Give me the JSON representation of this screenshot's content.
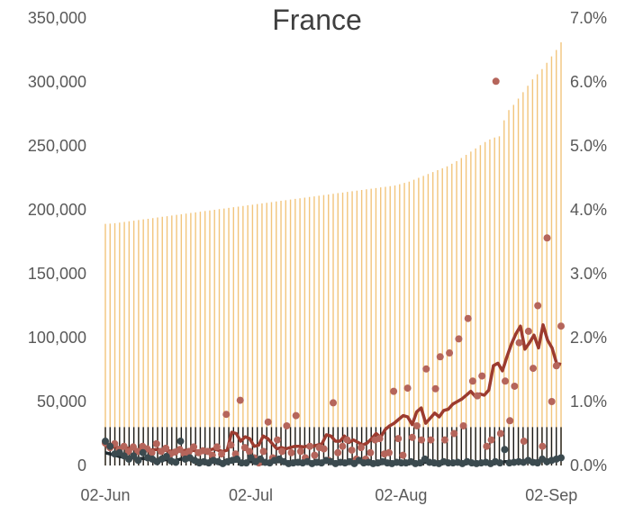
{
  "chart_data": {
    "type": "bar",
    "title": "France",
    "xlabel": "",
    "ylabel": "",
    "x_range": [
      "2020-06-02",
      "2020-09-04"
    ],
    "x_tick_labels": [
      "02-Jun",
      "02-Jul",
      "02-Aug",
      "02-Sep"
    ],
    "x_ticks": [
      "2020-06-02",
      "2020-07-02",
      "2020-08-02",
      "2020-09-02"
    ],
    "y_left": {
      "ylim": [
        0,
        350000
      ],
      "ticks": [
        0,
        50000,
        100000,
        150000,
        200000,
        250000,
        300000,
        350000
      ],
      "tick_labels": [
        "0",
        "50,000",
        "100,000",
        "150,000",
        "200,000",
        "250,000",
        "300,000",
        "350,000"
      ]
    },
    "y_right": {
      "ylim": [
        0,
        7
      ],
      "unit": "%",
      "ticks": [
        0,
        1,
        2,
        3,
        4,
        5,
        6,
        7
      ],
      "tick_labels": [
        "0.0%",
        "1.0%",
        "2.0%",
        "3.0%",
        "4.0%",
        "5.0%",
        "6.0%",
        "7.0%"
      ]
    },
    "grid": false,
    "legend": "none",
    "colors": {
      "cumulative_bars": "#f2c57c",
      "daily_bars": "#1a1a1a",
      "red_points": "#b5655b",
      "red_line": "#9c3b2f",
      "dark_points": "#3b4a4f",
      "dark_line": "#1f2a2f",
      "text": "#595959",
      "title": "#404040"
    },
    "series": [
      {
        "axis": "left",
        "style": "thin-bar",
        "color": "#f2c57c",
        "values": [
          189000,
          189200,
          189500,
          190000,
          190500,
          191000,
          191500,
          192000,
          192500,
          193000,
          193500,
          194000,
          194500,
          195000,
          195500,
          196000,
          196500,
          197000,
          197500,
          198000,
          198500,
          199000,
          199500,
          200000,
          200500,
          201000,
          201500,
          202000,
          202500,
          203000,
          203500,
          204000,
          204500,
          205000,
          205500,
          206000,
          206500,
          207000,
          207500,
          208000,
          208500,
          209000,
          209500,
          210000,
          210500,
          211000,
          211500,
          212000,
          212500,
          213000,
          213500,
          214000,
          214500,
          215000,
          215500,
          216000,
          216500,
          217000,
          217500,
          218000,
          218500,
          219000,
          220000,
          221000,
          222000,
          223500,
          225000,
          226500,
          228000,
          229500,
          231000,
          232500,
          234000,
          236000,
          238000,
          240500,
          243000,
          245500,
          248000,
          250500,
          253000,
          255000,
          256500,
          257500,
          270000,
          278000,
          282000,
          287000,
          292000,
          297000,
          302000,
          306000,
          310000,
          315000,
          320000,
          325000,
          331000
        ]
      },
      {
        "axis": "left",
        "style": "thin-bar",
        "color": "#1a1a1a",
        "values": [
          30000,
          30000,
          30000,
          30000,
          30000,
          30000,
          30000,
          30000,
          30000,
          30000,
          30000,
          30000,
          30000,
          30000,
          30000,
          30000,
          30000,
          30000,
          30000,
          30000,
          30000,
          30000,
          30000,
          30000,
          30000,
          30000,
          30000,
          30000,
          30000,
          30000,
          30000,
          30000,
          30000,
          30000,
          30000,
          30000,
          30000,
          30000,
          30000,
          30000,
          30000,
          30000,
          30000,
          30000,
          30000,
          30000,
          30000,
          30000,
          30000,
          30000,
          30000,
          30000,
          30000,
          30000,
          30000,
          30000,
          30000,
          30000,
          30000,
          30000,
          30000,
          30000,
          30000,
          30000,
          30000,
          30000,
          30000,
          30000,
          30000,
          30000,
          30000,
          30000,
          30000,
          30000,
          30000,
          30000,
          30000,
          30000,
          30000,
          30000,
          30000,
          30000,
          30000,
          30000,
          30000,
          30000,
          30000,
          30000,
          30000,
          30000,
          30000,
          30000,
          30000,
          30000,
          30000,
          30000,
          30000
        ]
      },
      {
        "axis": "right",
        "style": "points",
        "color": "#b5655b",
        "values": [
          0.35,
          0.28,
          0.34,
          0.25,
          0.3,
          0.22,
          0.29,
          0.22,
          0.3,
          0.26,
          0.2,
          0.34,
          0.22,
          0.27,
          0.18,
          0.21,
          0.25,
          0.18,
          0.22,
          0.29,
          0.2,
          0.23,
          0.22,
          0.16,
          0.29,
          0.18,
          0.8,
          0.32,
          0.18,
          1.02,
          0.28,
          0.22,
          0.12,
          0.04,
          0.22,
          0.68,
          0.12,
          0.4,
          0.22,
          0.62,
          0.2,
          0.78,
          0.22,
          0.12,
          0.3,
          0.16,
          0.28,
          0.26,
          0.08,
          0.98,
          0.2,
          0.3,
          0.4,
          0.24,
          0.1,
          0.28,
          0.1,
          0.2,
          0.4,
          0.42,
          0.18,
          0.2,
          1.16,
          0.42,
          0.16,
          1.21,
          0.44,
          0.62,
          0.4,
          1.51,
          0.4,
          1.2,
          1.7,
          0.4,
          1.76,
          0.5,
          1.98,
          0.62,
          2.3,
          1.32,
          1.09,
          1.4,
          0.3,
          0.4,
          6.01,
          0.5,
          1.32,
          0.7,
          1.24,
          1.92,
          0.38,
          2.1,
          1.52,
          2.5,
          0.3,
          3.56,
          1.0,
          1.56,
          2.18
        ]
      },
      {
        "axis": "right",
        "style": "line",
        "color": "#9c3b2f",
        "values": [
          0.3,
          0.3,
          0.29,
          0.28,
          0.27,
          0.27,
          0.26,
          0.25,
          0.25,
          0.24,
          0.24,
          0.25,
          0.25,
          0.24,
          0.23,
          0.22,
          0.22,
          0.23,
          0.24,
          0.24,
          0.23,
          0.22,
          0.23,
          0.24,
          0.26,
          0.24,
          0.22,
          0.24,
          0.52,
          0.5,
          0.38,
          0.45,
          0.42,
          0.3,
          0.32,
          0.46,
          0.42,
          0.34,
          0.26,
          0.28,
          0.26,
          0.28,
          0.3,
          0.3,
          0.29,
          0.31,
          0.3,
          0.32,
          0.34,
          0.48,
          0.46,
          0.38,
          0.38,
          0.46,
          0.36,
          0.4,
          0.36,
          0.32,
          0.35,
          0.42,
          0.5,
          0.44,
          0.56,
          0.62,
          0.66,
          0.72,
          0.78,
          0.76,
          0.64,
          0.84,
          0.9,
          0.66,
          0.74,
          0.82,
          0.76,
          0.86,
          0.88,
          0.96,
          1.0,
          1.04,
          1.1,
          1.16,
          1.08,
          1.12,
          1.1,
          1.18,
          1.56,
          1.6,
          1.48,
          1.7,
          1.9,
          2.06,
          2.18,
          1.82,
          1.92,
          2.04,
          1.84,
          2.2,
          1.96,
          1.84,
          1.6,
          1.58
        ]
      },
      {
        "axis": "right",
        "style": "points",
        "color": "#3b4a4f",
        "values": [
          0.38,
          0.3,
          0.18,
          0.2,
          0.15,
          0.1,
          0.15,
          0.08,
          0.2,
          0.12,
          0.1,
          0.06,
          0.1,
          0.14,
          0.07,
          0.05,
          0.38,
          0.1,
          0.12,
          0.08,
          0.04,
          0.06,
          0.04,
          0.08,
          0.06,
          0.03,
          0.06,
          0.08,
          0.1,
          0.04,
          0.04,
          0.12,
          0.06,
          0.1,
          0.05,
          0.04,
          0.08,
          0.1,
          0.06,
          0.03,
          0.04,
          0.05,
          0.04,
          0.06,
          0.03,
          0.05,
          0.04,
          0.08,
          0.06,
          0.03,
          0.05,
          0.04,
          0.06,
          0.03,
          0.08,
          0.04,
          0.05,
          0.03,
          0.04,
          0.06,
          0.04,
          0.03,
          0.05,
          0.04,
          0.04,
          0.06,
          0.03,
          0.04,
          0.1,
          0.05,
          0.04,
          0.03,
          0.06,
          0.04,
          0.04,
          0.05,
          0.03,
          0.06,
          0.04,
          0.03,
          0.04,
          0.05,
          0.03,
          0.06,
          0.04,
          0.25,
          0.04,
          0.05,
          0.06,
          0.05,
          0.08,
          0.05,
          0.04,
          0.1,
          0.06,
          0.08,
          0.1,
          0.12
        ]
      },
      {
        "axis": "right",
        "style": "line",
        "color": "#1f2a2f",
        "values": [
          0.2,
          0.18,
          0.16,
          0.14,
          0.13,
          0.12,
          0.12,
          0.11,
          0.11,
          0.1,
          0.1,
          0.09,
          0.09,
          0.09,
          0.08,
          0.08,
          0.1,
          0.1,
          0.09,
          0.09,
          0.08,
          0.07,
          0.06,
          0.06,
          0.06,
          0.05,
          0.05,
          0.06,
          0.07,
          0.06,
          0.06,
          0.06,
          0.06,
          0.06,
          0.05,
          0.05,
          0.06,
          0.06,
          0.05,
          0.05,
          0.05,
          0.05,
          0.05,
          0.05,
          0.04,
          0.05,
          0.05,
          0.05,
          0.05,
          0.04,
          0.04,
          0.04,
          0.05,
          0.04,
          0.05,
          0.04,
          0.04,
          0.04,
          0.04,
          0.04,
          0.04,
          0.04,
          0.04,
          0.04,
          0.04,
          0.04,
          0.04,
          0.04,
          0.05,
          0.05,
          0.05,
          0.05,
          0.04,
          0.04,
          0.04,
          0.04,
          0.04,
          0.04,
          0.04,
          0.04,
          0.04,
          0.04,
          0.04,
          0.04,
          0.04,
          0.06,
          0.06,
          0.06,
          0.06,
          0.06,
          0.07,
          0.07,
          0.07,
          0.08,
          0.08,
          0.09,
          0.1,
          0.1
        ]
      }
    ]
  }
}
